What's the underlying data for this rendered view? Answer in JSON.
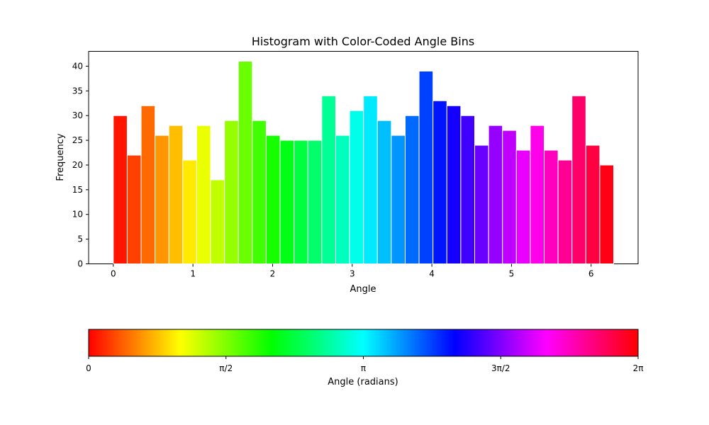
{
  "chart_data": {
    "type": "bar",
    "title": "Histogram with Color-Coded Angle Bins",
    "xlabel": "Angle",
    "ylabel": "Frequency",
    "xlim": [
      -0.31,
      6.59
    ],
    "ylim": [
      0,
      43
    ],
    "x_ticks": [
      0,
      1,
      2,
      3,
      4,
      5,
      6
    ],
    "y_ticks": [
      0,
      5,
      10,
      15,
      20,
      25,
      30,
      35,
      40
    ],
    "grid": false,
    "bin_range": [
      0,
      6.2832
    ],
    "bin_count": 36,
    "values": [
      30,
      22,
      32,
      26,
      28,
      21,
      28,
      17,
      29,
      41,
      29,
      26,
      25,
      25,
      25,
      34,
      26,
      31,
      34,
      29,
      26,
      30,
      39,
      33,
      32,
      30,
      24,
      28,
      27,
      23,
      28,
      23,
      21,
      34,
      24,
      20
    ],
    "colormap": "hsv",
    "colorbar": {
      "label": "Angle (radians)",
      "range": [
        0,
        6.2832
      ],
      "tick_labels": [
        "0",
        "π/2",
        "π",
        "3π/2",
        "2π"
      ]
    }
  }
}
